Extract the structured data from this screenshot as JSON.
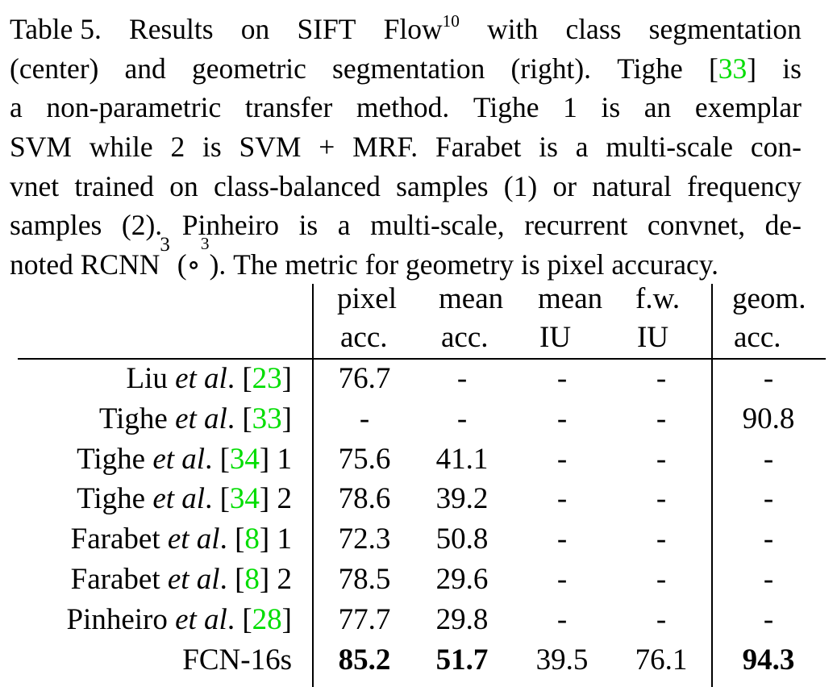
{
  "caption": {
    "lines": [
      {
        "parts": [
          "Table 5.",
          "Results",
          "on",
          "SIFT",
          "Flow",
          "10",
          "with",
          "class",
          "segmentation"
        ]
      },
      {
        "parts": [
          "(center)",
          "and",
          "geometric",
          "segmentation",
          "(right).",
          "Tighe",
          "[",
          "33",
          "]",
          "is"
        ]
      },
      {
        "parts": [
          "a",
          "non-parametric",
          "transfer",
          "method.",
          "Tighe",
          "1",
          "is",
          "an",
          "exemplar"
        ]
      },
      {
        "parts": [
          "SVM",
          "while",
          "2",
          "is",
          "SVM",
          "+",
          "MRF.",
          "Farabet",
          "is",
          "a",
          "multi-scale",
          "con-"
        ]
      },
      {
        "parts": [
          "vnet",
          "trained",
          "on",
          "class-balanced",
          "samples",
          "(1)",
          "or",
          "natural",
          "frequency"
        ]
      },
      {
        "parts": [
          "samples",
          "(2).",
          "Pinheiro",
          "is",
          "a",
          "multi-scale,",
          "recurrent",
          "convnet,",
          "de-"
        ]
      },
      {
        "parts": [
          "noted",
          "RCNN",
          "3",
          "(∘",
          "3",
          ").",
          "The metric for geometry is pixel accuracy."
        ]
      }
    ]
  },
  "table": {
    "header_top": [
      "pixel",
      "mean",
      "mean",
      "f.w.",
      "geom."
    ],
    "header_bottom": [
      "acc.",
      "acc.",
      "IU",
      "IU",
      "acc."
    ],
    "rows": [
      {
        "method": "Liu",
        "etal": "et al",
        "dot": ".",
        "ref": "23",
        "suffix": "",
        "cells": [
          "76.7",
          "-",
          "-",
          "-",
          "-"
        ],
        "bold": [
          false,
          false,
          false,
          false,
          false
        ]
      },
      {
        "method": "Tighe",
        "etal": "et al",
        "dot": ".",
        "ref": "33",
        "suffix": "",
        "cells": [
          "-",
          "-",
          "-",
          "-",
          "90.8"
        ],
        "bold": [
          false,
          false,
          false,
          false,
          false
        ]
      },
      {
        "method": "Tighe",
        "etal": "et al",
        "dot": ".",
        "ref": "34",
        "suffix": "1",
        "cells": [
          "75.6",
          "41.1",
          "-",
          "-",
          "-"
        ],
        "bold": [
          false,
          false,
          false,
          false,
          false
        ]
      },
      {
        "method": "Tighe",
        "etal": "et al",
        "dot": ".",
        "ref": "34",
        "suffix": "2",
        "cells": [
          "78.6",
          "39.2",
          "-",
          "-",
          "-"
        ],
        "bold": [
          false,
          false,
          false,
          false,
          false
        ]
      },
      {
        "method": "Farabet",
        "etal": "et al",
        "dot": ".",
        "ref": "8",
        "suffix": "1",
        "cells": [
          "72.3",
          "50.8",
          "-",
          "-",
          "-"
        ],
        "bold": [
          false,
          false,
          false,
          false,
          false
        ]
      },
      {
        "method": "Farabet",
        "etal": "et al",
        "dot": ".",
        "ref": "8",
        "suffix": "2",
        "cells": [
          "78.5",
          "29.6",
          "-",
          "-",
          "-"
        ],
        "bold": [
          false,
          false,
          false,
          false,
          false
        ]
      },
      {
        "method": "Pinheiro",
        "etal": "et al",
        "dot": ".",
        "ref": "28",
        "suffix": "",
        "cells": [
          "77.7",
          "29.8",
          "-",
          "-",
          "-"
        ],
        "bold": [
          false,
          false,
          false,
          false,
          false
        ]
      },
      {
        "method": "FCN-16s",
        "etal": "",
        "dot": "",
        "ref": "",
        "suffix": "",
        "cells": [
          "85.2",
          "51.7",
          "39.5",
          "76.1",
          "94.3"
        ],
        "bold": [
          true,
          true,
          false,
          false,
          true
        ]
      }
    ]
  },
  "colors": {
    "citation": "#00dd00",
    "text": "#000000",
    "background": "#ffffff"
  }
}
